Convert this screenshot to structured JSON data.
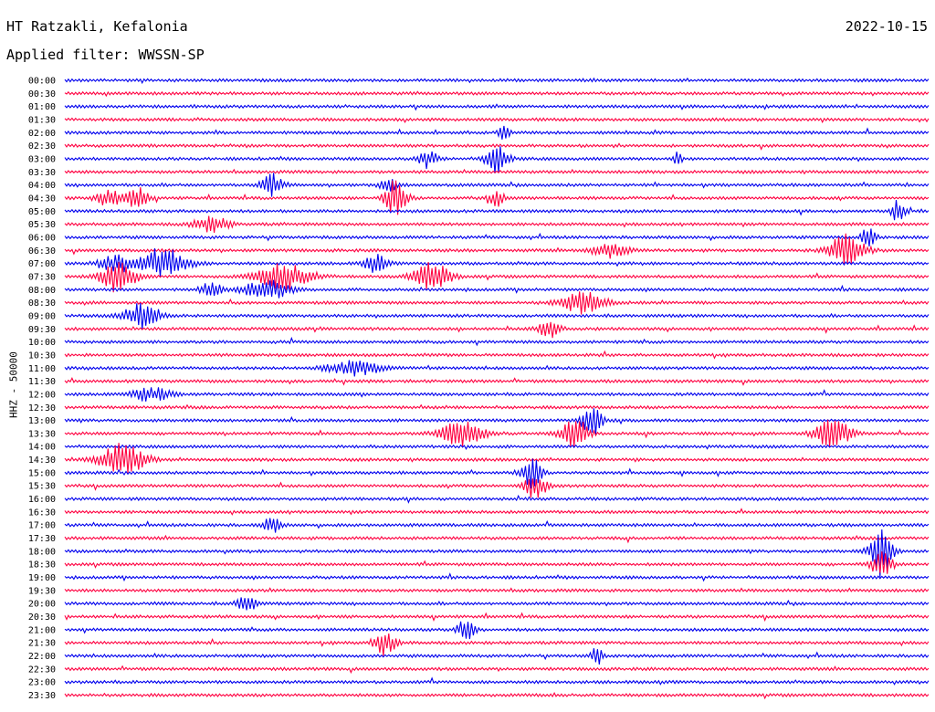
{
  "header": {
    "station": "HT Ratzakli, Kefalonia",
    "date": "2022-10-15",
    "filter": "Applied filter: WWSSN-SP",
    "channel_label": "HHZ - 50000"
  },
  "chart_data": {
    "type": "line",
    "title": "HT Ratzakli, Kefalonia",
    "ylabel": "HHZ - 50000",
    "xlabel": "",
    "row_interval_minutes": 30,
    "rows": [
      "00:00",
      "00:30",
      "01:00",
      "01:30",
      "02:00",
      "02:30",
      "03:00",
      "03:30",
      "04:00",
      "04:30",
      "05:00",
      "05:30",
      "06:00",
      "06:30",
      "07:00",
      "07:30",
      "08:00",
      "08:30",
      "09:00",
      "09:30",
      "10:00",
      "10:30",
      "11:00",
      "11:30",
      "12:00",
      "12:30",
      "13:00",
      "13:30",
      "14:00",
      "14:30",
      "15:00",
      "15:30",
      "16:00",
      "16:30",
      "17:00",
      "17:30",
      "18:00",
      "18:30",
      "19:00",
      "19:30",
      "20:00",
      "20:30",
      "21:00",
      "21:30",
      "22:00",
      "22:30",
      "23:00",
      "23:30"
    ],
    "colors": [
      "#0000ee",
      "#ff0040"
    ],
    "events": [
      {
        "row": 4,
        "pos": 0.508,
        "amp": 9,
        "w": 0.006
      },
      {
        "row": 6,
        "pos": 0.42,
        "amp": 8,
        "w": 0.012
      },
      {
        "row": 6,
        "pos": 0.5,
        "amp": 16,
        "w": 0.012
      },
      {
        "row": 6,
        "pos": 0.71,
        "amp": 9,
        "w": 0.004
      },
      {
        "row": 8,
        "pos": 0.24,
        "amp": 12,
        "w": 0.012
      },
      {
        "row": 8,
        "pos": 0.375,
        "amp": 7,
        "w": 0.01
      },
      {
        "row": 9,
        "pos": 0.05,
        "amp": 9,
        "w": 0.015
      },
      {
        "row": 9,
        "pos": 0.083,
        "amp": 12,
        "w": 0.012
      },
      {
        "row": 9,
        "pos": 0.383,
        "amp": 22,
        "w": 0.012
      },
      {
        "row": 9,
        "pos": 0.5,
        "amp": 9,
        "w": 0.008
      },
      {
        "row": 10,
        "pos": 0.965,
        "amp": 12,
        "w": 0.008
      },
      {
        "row": 11,
        "pos": 0.17,
        "amp": 8,
        "w": 0.02
      },
      {
        "row": 12,
        "pos": 0.93,
        "amp": 10,
        "w": 0.008
      },
      {
        "row": 13,
        "pos": 0.63,
        "amp": 8,
        "w": 0.02
      },
      {
        "row": 13,
        "pos": 0.905,
        "amp": 18,
        "w": 0.02
      },
      {
        "row": 14,
        "pos": 0.06,
        "amp": 10,
        "w": 0.02
      },
      {
        "row": 14,
        "pos": 0.117,
        "amp": 16,
        "w": 0.025
      },
      {
        "row": 14,
        "pos": 0.36,
        "amp": 10,
        "w": 0.012
      },
      {
        "row": 15,
        "pos": 0.063,
        "amp": 18,
        "w": 0.02
      },
      {
        "row": 15,
        "pos": 0.255,
        "amp": 14,
        "w": 0.03
      },
      {
        "row": 15,
        "pos": 0.425,
        "amp": 16,
        "w": 0.02
      },
      {
        "row": 16,
        "pos": 0.17,
        "amp": 8,
        "w": 0.012
      },
      {
        "row": 16,
        "pos": 0.233,
        "amp": 12,
        "w": 0.025
      },
      {
        "row": 17,
        "pos": 0.6,
        "amp": 12,
        "w": 0.025
      },
      {
        "row": 18,
        "pos": 0.09,
        "amp": 14,
        "w": 0.02
      },
      {
        "row": 19,
        "pos": 0.56,
        "amp": 10,
        "w": 0.012
      },
      {
        "row": 22,
        "pos": 0.335,
        "amp": 8,
        "w": 0.03
      },
      {
        "row": 24,
        "pos": 0.1,
        "amp": 8,
        "w": 0.02
      },
      {
        "row": 26,
        "pos": 0.61,
        "amp": 18,
        "w": 0.012
      },
      {
        "row": 27,
        "pos": 0.46,
        "amp": 14,
        "w": 0.025
      },
      {
        "row": 27,
        "pos": 0.59,
        "amp": 18,
        "w": 0.015
      },
      {
        "row": 27,
        "pos": 0.89,
        "amp": 16,
        "w": 0.02
      },
      {
        "row": 29,
        "pos": 0.067,
        "amp": 18,
        "w": 0.025
      },
      {
        "row": 30,
        "pos": 0.54,
        "amp": 22,
        "w": 0.01
      },
      {
        "row": 31,
        "pos": 0.545,
        "amp": 14,
        "w": 0.012
      },
      {
        "row": 34,
        "pos": 0.24,
        "amp": 8,
        "w": 0.01
      },
      {
        "row": 36,
        "pos": 0.945,
        "amp": 28,
        "w": 0.012
      },
      {
        "row": 37,
        "pos": 0.945,
        "amp": 14,
        "w": 0.012
      },
      {
        "row": 40,
        "pos": 0.21,
        "amp": 10,
        "w": 0.01
      },
      {
        "row": 42,
        "pos": 0.465,
        "amp": 12,
        "w": 0.01
      },
      {
        "row": 43,
        "pos": 0.37,
        "amp": 14,
        "w": 0.012
      },
      {
        "row": 44,
        "pos": 0.615,
        "amp": 12,
        "w": 0.006
      }
    ]
  }
}
